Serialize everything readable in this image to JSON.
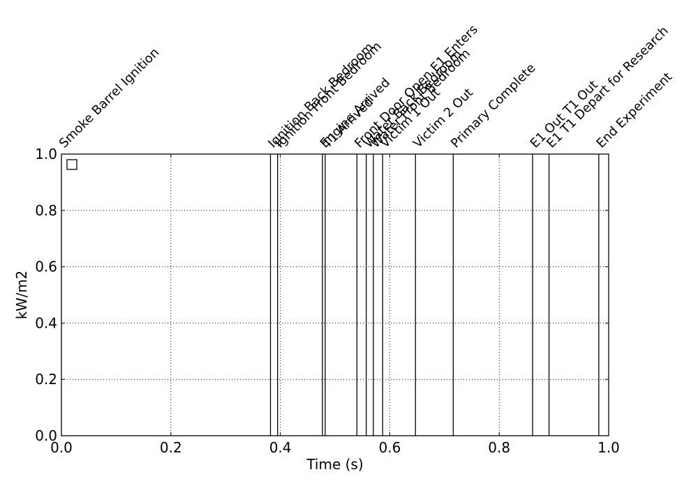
{
  "chart_data": {
    "type": "line",
    "xlabel": "Time (s)",
    "ylabel": "kW/m2",
    "xlim": [
      0,
      1
    ],
    "ylim": [
      0,
      1
    ],
    "grid": true,
    "legend_placement": "top-left",
    "legend_entries": [
      ""
    ],
    "x_ticks": [
      0.0,
      0.2,
      0.4,
      0.6,
      0.8,
      1.0
    ],
    "x_tick_labels": [
      "0.0",
      "0.2",
      "0.4",
      "0.6",
      "0.8",
      "1.0"
    ],
    "y_ticks": [
      0.0,
      0.2,
      0.4,
      0.6,
      0.8,
      1.0
    ],
    "y_tick_labels": [
      "0.0",
      "0.2",
      "0.4",
      "0.6",
      "0.8",
      "1.0"
    ],
    "series": [],
    "events": [
      {
        "x": 0.0,
        "label": "Smoke Barrel Ignition"
      },
      {
        "x": 0.382,
        "label": "Ignition Back Bedroom"
      },
      {
        "x": 0.395,
        "label": "Ignition Front Bedroom"
      },
      {
        "x": 0.477,
        "label": "Engine Arrived"
      },
      {
        "x": 0.482,
        "label": "T1 Arrived"
      },
      {
        "x": 0.54,
        "label": "Front Door Open E1 Enters"
      },
      {
        "x": 0.557,
        "label": "Water Back Bedroom"
      },
      {
        "x": 0.57,
        "label": "Water Front Bedroom"
      },
      {
        "x": 0.587,
        "label": "Victim 1 Out"
      },
      {
        "x": 0.647,
        "label": "Victim 2 Out"
      },
      {
        "x": 0.716,
        "label": "Primary Complete"
      },
      {
        "x": 0.861,
        "label": "E1 Out T1 Out"
      },
      {
        "x": 0.891,
        "label": "E1 T1 Depart for Research"
      },
      {
        "x": 0.982,
        "label": "End Experiment"
      }
    ]
  }
}
